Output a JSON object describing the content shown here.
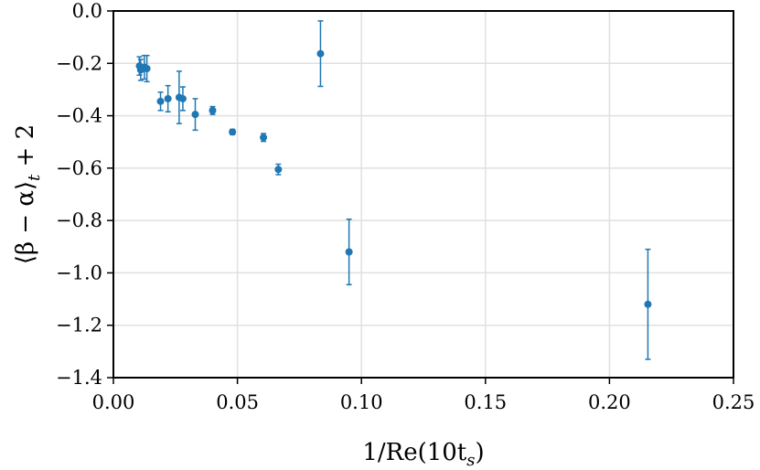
{
  "chart_data": {
    "type": "scatter",
    "title": "",
    "xlabel": "1/Re(10t_s)",
    "ylabel": "⟨β − α⟩_t + 2",
    "xlim": [
      0.0,
      0.25
    ],
    "ylim": [
      -1.4,
      0.0
    ],
    "grid": {
      "vertical": true,
      "horizontal": true
    },
    "legend": "none",
    "colors": {
      "series": "#1f77b4",
      "grid": "#e0e0e0",
      "axes": "#000000"
    },
    "x_ticks": [
      0.0,
      0.05,
      0.1,
      0.15,
      0.2,
      0.25
    ],
    "x_tick_labels": [
      "0.00",
      "0.05",
      "0.10",
      "0.15",
      "0.20",
      "0.25"
    ],
    "y_ticks": [
      0.0,
      -0.2,
      -0.4,
      -0.6,
      -0.8,
      -1.0,
      -1.2,
      -1.4
    ],
    "y_tick_labels": [
      "0.0",
      "−0.2",
      "−0.4",
      "−0.6",
      "−0.8",
      "−1.0",
      "−1.2",
      "−1.4"
    ],
    "series": [
      {
        "points": [
          {
            "x": 0.0105,
            "y": -0.21,
            "err": 0.035
          },
          {
            "x": 0.011,
            "y": -0.225,
            "err": 0.04
          },
          {
            "x": 0.0125,
            "y": -0.215,
            "err": 0.045
          },
          {
            "x": 0.0135,
            "y": -0.22,
            "err": 0.05
          },
          {
            "x": 0.019,
            "y": -0.345,
            "err": 0.035
          },
          {
            "x": 0.022,
            "y": -0.335,
            "err": 0.05
          },
          {
            "x": 0.0265,
            "y": -0.33,
            "err": 0.1
          },
          {
            "x": 0.028,
            "y": -0.335,
            "err": 0.045
          },
          {
            "x": 0.033,
            "y": -0.395,
            "err": 0.06
          },
          {
            "x": 0.04,
            "y": -0.38,
            "err": 0.015
          },
          {
            "x": 0.048,
            "y": -0.462,
            "err": 0.01
          },
          {
            "x": 0.0605,
            "y": -0.483,
            "err": 0.015
          },
          {
            "x": 0.0665,
            "y": -0.605,
            "err": 0.02
          },
          {
            "x": 0.0835,
            "y": -0.163,
            "err": 0.125
          },
          {
            "x": 0.095,
            "y": -0.92,
            "err": 0.125
          },
          {
            "x": 0.2155,
            "y": -1.12,
            "err": 0.21
          }
        ]
      }
    ]
  }
}
